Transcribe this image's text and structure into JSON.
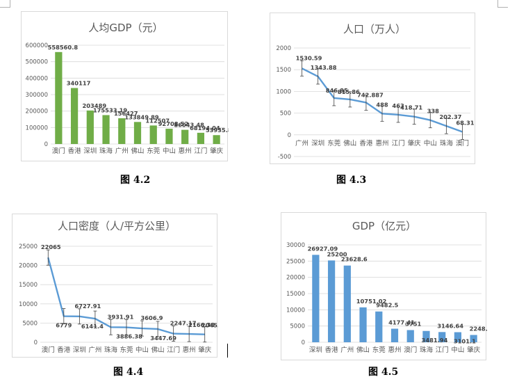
{
  "figures": [
    {
      "caption": "图 4.2"
    },
    {
      "caption": "图 4.3"
    },
    {
      "caption": "图 4.4"
    },
    {
      "caption": "图 4.5"
    }
  ],
  "chart_data": [
    {
      "type": "bar",
      "title": "人均GDP（元）",
      "categories": [
        "澳门",
        "香港",
        "深圳",
        "珠海",
        "广州",
        "佛山",
        "东莞",
        "中山",
        "惠州",
        "江门",
        "肇庆"
      ],
      "values": [
        558560.8,
        340117,
        203489,
        175533.19,
        156427,
        133849.89,
        112507,
        92708.52,
        86043.48,
        68194.04,
        53935.89
      ],
      "data_labels": [
        "558560.8",
        "340117",
        "203489",
        "175533.19",
        "156427",
        "133849.89",
        "112507",
        "92708.52",
        "86043.48",
        "68194.04",
        "53935.89"
      ],
      "yticks": [
        "600000",
        "500000",
        "400000",
        "300000",
        "200000",
        "100000",
        "0"
      ],
      "ylim": [
        0,
        600000
      ],
      "color": "#70ad47",
      "grid": true,
      "legend": "none"
    },
    {
      "type": "line",
      "title": "人口（万人）",
      "categories": [
        "广州",
        "深圳",
        "东莞",
        "佛山",
        "香港",
        "惠州",
        "江门",
        "肇庆",
        "中山",
        "珠海",
        "澳门"
      ],
      "values": [
        1530.59,
        1343.88,
        846.85,
        815.86,
        742.887,
        488,
        463,
        418.71,
        338,
        202.37,
        68.31
      ],
      "data_labels": [
        "1530.59",
        "1343.88",
        "846.85",
        "815.86",
        "742.887",
        "488",
        "463",
        "418.71",
        "338",
        "202.37",
        "68.31"
      ],
      "yticks": [
        "2000",
        "1500",
        "1000",
        "500",
        "0",
        "-500"
      ],
      "ylim": [
        -500,
        2000
      ],
      "error_bars": true,
      "color": "#5b9bd5",
      "grid": true,
      "legend": "none"
    },
    {
      "type": "line",
      "title": "人口密度（人/平方公里）",
      "categories": [
        "澳门",
        "香港",
        "深圳",
        "广州",
        "珠海",
        "东莞",
        "中山",
        "佛山",
        "江门",
        "惠州",
        "肇庆"
      ],
      "values": [
        22065,
        6779,
        6727.91,
        6141.4,
        3931.91,
        3886.38,
        3606.9,
        3447.69,
        2247.17,
        2166.38,
        2045.48
      ],
      "data_labels": [
        "22065",
        "6779",
        "6727.91",
        "6141.4",
        "3931.91",
        "3886.38",
        "3606.9",
        "3447.69",
        "2247.17",
        "2166.38",
        "2045.48"
      ],
      "yticks": [
        "25000",
        "20000",
        "15000",
        "10000",
        "5000",
        "0"
      ],
      "ylim": [
        0,
        25000
      ],
      "error_bars": true,
      "color": "#5b9bd5",
      "grid": true,
      "legend": "none"
    },
    {
      "type": "bar",
      "title": "GDP（亿元）",
      "categories": [
        "深圳",
        "香港",
        "广州",
        "佛山",
        "东莞",
        "惠州",
        "澳门",
        "珠海",
        "江门",
        "中山",
        "肇庆"
      ],
      "values": [
        26927.09,
        25200,
        23628.6,
        10751.02,
        9482.5,
        4177.41,
        3751,
        3481.94,
        3146.64,
        3101.1,
        2248.8
      ],
      "data_labels": [
        "26927.09",
        "25200",
        "23628.6",
        "10751.02",
        "9482.5",
        "4177.41",
        "3751",
        "3481.94",
        "3146.64",
        "3101.1",
        "2248.8"
      ],
      "yticks": [
        "30000",
        "25000",
        "20000",
        "15000",
        "10000",
        "5000",
        "0"
      ],
      "ylim": [
        0,
        30000
      ],
      "error_bars": true,
      "color": "#5b9bd5",
      "grid": true,
      "legend": "none"
    }
  ]
}
